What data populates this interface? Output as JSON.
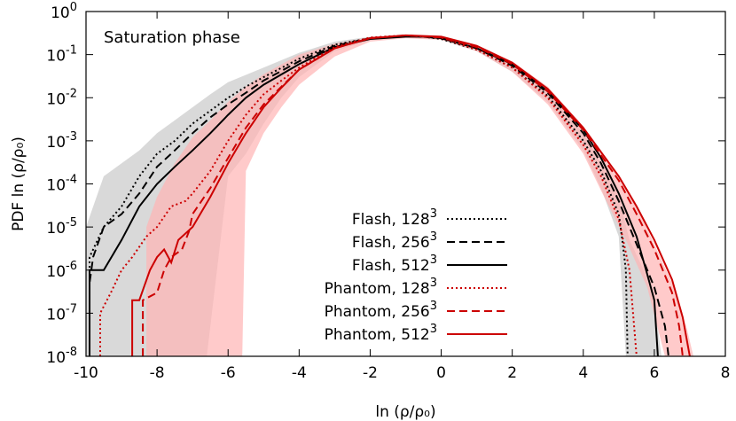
{
  "chart_data": {
    "type": "line",
    "annotation": "Saturation phase",
    "xlabel": "ln (ρ/ρ₀)",
    "ylabel": "PDF ln (ρ/ρ₀)",
    "xlim": [
      -10,
      8
    ],
    "ylim": [
      1e-08,
      1
    ],
    "yscale": "log",
    "grid": false,
    "legend_position": "lower-center",
    "x_ticks": [
      -10,
      -8,
      -6,
      -4,
      -2,
      0,
      2,
      4,
      6,
      8
    ],
    "y_ticks": [
      {
        "value": 1,
        "base": "10",
        "exp": "0"
      },
      {
        "value": 0.1,
        "base": "10",
        "exp": "-1"
      },
      {
        "value": 0.01,
        "base": "10",
        "exp": "-2"
      },
      {
        "value": 0.001,
        "base": "10",
        "exp": "-3"
      },
      {
        "value": 0.0001,
        "base": "10",
        "exp": "-4"
      },
      {
        "value": 1e-05,
        "base": "10",
        "exp": "-5"
      },
      {
        "value": 1e-06,
        "base": "10",
        "exp": "-6"
      },
      {
        "value": 1e-07,
        "base": "10",
        "exp": "-7"
      },
      {
        "value": 1e-08,
        "base": "10",
        "exp": "-8"
      }
    ],
    "bands": [
      {
        "color": "#cccccc",
        "opacity": 0.75,
        "upper": [
          [
            -10,
            1e-05
          ],
          [
            -9.5,
            0.00015
          ],
          [
            -9,
            0.0003
          ],
          [
            -8.5,
            0.0006
          ],
          [
            -8,
            0.0015
          ],
          [
            -7.5,
            0.003
          ],
          [
            -7,
            0.006
          ],
          [
            -6.5,
            0.012
          ],
          [
            -6,
            0.023
          ],
          [
            -5,
            0.05
          ],
          [
            -4,
            0.11
          ],
          [
            -3,
            0.2
          ],
          [
            -2,
            0.26
          ],
          [
            -1,
            0.28
          ],
          [
            0,
            0.25
          ],
          [
            1,
            0.15
          ],
          [
            2,
            0.06
          ],
          [
            3,
            0.015
          ],
          [
            4,
            0.0015
          ],
          [
            4.5,
            0.0003
          ],
          [
            5,
            5e-05
          ],
          [
            5.3,
            5e-06
          ],
          [
            5.7,
            1e-06
          ],
          [
            6,
            2e-07
          ],
          [
            6.2,
            1e-08
          ]
        ],
        "lower": [
          [
            5.2,
            1e-08
          ],
          [
            5,
            6e-06
          ],
          [
            4.5,
            8e-05
          ],
          [
            4,
            0.0006
          ],
          [
            3,
            0.008
          ],
          [
            2,
            0.04
          ],
          [
            1,
            0.12
          ],
          [
            0,
            0.22
          ],
          [
            -1,
            0.25
          ],
          [
            -2,
            0.22
          ],
          [
            -3,
            0.12
          ],
          [
            -4,
            0.03
          ],
          [
            -4.5,
            0.01
          ],
          [
            -5,
            0.0025
          ],
          [
            -5.5,
            0.0005
          ],
          [
            -6,
            0.00015
          ],
          [
            -6.6,
            1e-08
          ],
          [
            -10,
            1e-08
          ]
        ]
      },
      {
        "color": "#ffb3b3",
        "opacity": 0.7,
        "upper": [
          [
            -8.3,
            1e-08
          ],
          [
            -8.3,
            1e-05
          ],
          [
            -8,
            5e-05
          ],
          [
            -7.5,
            0.0003
          ],
          [
            -7,
            0.0012
          ],
          [
            -6.5,
            0.003
          ],
          [
            -6,
            0.008
          ],
          [
            -5.5,
            0.018
          ],
          [
            -5,
            0.035
          ],
          [
            -4,
            0.1
          ],
          [
            -3,
            0.18
          ],
          [
            -2,
            0.25
          ],
          [
            -1,
            0.28
          ],
          [
            0,
            0.25
          ],
          [
            1,
            0.16
          ],
          [
            2,
            0.07
          ],
          [
            3,
            0.018
          ],
          [
            4,
            0.0022
          ],
          [
            5,
            0.00015
          ],
          [
            5.5,
            3e-05
          ],
          [
            6,
            4e-06
          ],
          [
            6.5,
            5e-07
          ],
          [
            6.9,
            5e-08
          ],
          [
            7.1,
            1e-08
          ]
        ],
        "lower": [
          [
            6.3,
            1e-08
          ],
          [
            5.8,
            4e-07
          ],
          [
            5.2,
            5e-06
          ],
          [
            4.5,
            7e-05
          ],
          [
            4,
            0.0005
          ],
          [
            3,
            0.007
          ],
          [
            2,
            0.04
          ],
          [
            1,
            0.12
          ],
          [
            0,
            0.22
          ],
          [
            -1,
            0.24
          ],
          [
            -2,
            0.2
          ],
          [
            -3,
            0.09
          ],
          [
            -4,
            0.02
          ],
          [
            -4.5,
            0.006
          ],
          [
            -5,
            0.0015
          ],
          [
            -5.5,
            0.0002
          ],
          [
            -5.6,
            1e-08
          ]
        ]
      }
    ],
    "series": [
      {
        "name": "Flash, 128",
        "sup": "3",
        "color": "#000000",
        "dash": "2,3",
        "width": 2,
        "points": [
          [
            -9.9,
            1e-08
          ],
          [
            -9.9,
            2e-06
          ],
          [
            -9.5,
            1e-05
          ],
          [
            -9,
            3e-05
          ],
          [
            -8.5,
            0.00015
          ],
          [
            -8,
            0.0005
          ],
          [
            -7.5,
            0.001
          ],
          [
            -7,
            0.0025
          ],
          [
            -6.5,
            0.005
          ],
          [
            -6,
            0.01
          ],
          [
            -5.5,
            0.018
          ],
          [
            -5,
            0.03
          ],
          [
            -4,
            0.08
          ],
          [
            -3,
            0.17
          ],
          [
            -2,
            0.24
          ],
          [
            -1,
            0.27
          ],
          [
            -0.5,
            0.26
          ],
          [
            0,
            0.23
          ],
          [
            1,
            0.13
          ],
          [
            2,
            0.05
          ],
          [
            3,
            0.011
          ],
          [
            4,
            0.001
          ],
          [
            4.5,
            0.0002
          ],
          [
            5,
            2e-05
          ],
          [
            5.1,
            5e-06
          ],
          [
            5.2,
            1e-06
          ],
          [
            5.25,
            1e-08
          ]
        ]
      },
      {
        "name": "Flash, 256",
        "sup": "3",
        "color": "#000000",
        "dash": "9,5",
        "width": 2,
        "points": [
          [
            -9.9,
            1e-08
          ],
          [
            -9.9,
            5e-07
          ],
          [
            -9.8,
            2e-06
          ],
          [
            -9.5,
            1e-05
          ],
          [
            -9,
            2e-05
          ],
          [
            -8.5,
            6e-05
          ],
          [
            -8,
            0.00025
          ],
          [
            -7.5,
            0.0006
          ],
          [
            -7,
            0.0015
          ],
          [
            -6.5,
            0.0035
          ],
          [
            -6,
            0.007
          ],
          [
            -5.5,
            0.013
          ],
          [
            -5,
            0.025
          ],
          [
            -4,
            0.07
          ],
          [
            -3,
            0.16
          ],
          [
            -2,
            0.24
          ],
          [
            -1,
            0.27
          ],
          [
            -0.5,
            0.26
          ],
          [
            0,
            0.24
          ],
          [
            1,
            0.14
          ],
          [
            2,
            0.055
          ],
          [
            3,
            0.013
          ],
          [
            4,
            0.0015
          ],
          [
            4.5,
            0.0003
          ],
          [
            5,
            4e-05
          ],
          [
            5.5,
            4e-06
          ],
          [
            6,
            4e-07
          ],
          [
            6.3,
            5e-08
          ],
          [
            6.4,
            1e-08
          ]
        ]
      },
      {
        "name": "Flash, 512",
        "sup": "3",
        "color": "#000000",
        "dash": "",
        "width": 2,
        "points": [
          [
            -9.9,
            1e-08
          ],
          [
            -9.9,
            1e-06
          ],
          [
            -9.5,
            1e-06
          ],
          [
            -9,
            5e-06
          ],
          [
            -8.5,
            3e-05
          ],
          [
            -8,
            0.0001
          ],
          [
            -7.5,
            0.00025
          ],
          [
            -7,
            0.0006
          ],
          [
            -6.5,
            0.0015
          ],
          [
            -6,
            0.004
          ],
          [
            -5.5,
            0.01
          ],
          [
            -5,
            0.02
          ],
          [
            -4,
            0.06
          ],
          [
            -3,
            0.15
          ],
          [
            -2,
            0.23
          ],
          [
            -1,
            0.26
          ],
          [
            -0.5,
            0.26
          ],
          [
            0,
            0.24
          ],
          [
            1,
            0.14
          ],
          [
            2,
            0.06
          ],
          [
            3,
            0.014
          ],
          [
            4,
            0.0018
          ],
          [
            4.5,
            0.0004
          ],
          [
            5,
            6e-05
          ],
          [
            5.5,
            6e-06
          ],
          [
            5.8,
            8e-07
          ],
          [
            6,
            2e-07
          ],
          [
            6.1,
            1e-08
          ]
        ]
      },
      {
        "name": "Phantom, 128",
        "sup": "3",
        "color": "#cc0000",
        "dash": "2,3",
        "width": 2,
        "points": [
          [
            -9.6,
            1e-08
          ],
          [
            -9.6,
            1e-07
          ],
          [
            -9.3,
            3e-07
          ],
          [
            -9,
            1e-06
          ],
          [
            -8.7,
            2e-06
          ],
          [
            -8.3,
            6e-06
          ],
          [
            -8,
            1e-05
          ],
          [
            -7.6,
            3e-05
          ],
          [
            -7.2,
            4e-05
          ],
          [
            -7,
            6e-05
          ],
          [
            -6.5,
            0.0002
          ],
          [
            -6,
            0.001
          ],
          [
            -5.5,
            0.004
          ],
          [
            -5,
            0.012
          ],
          [
            -4.5,
            0.025
          ],
          [
            -4,
            0.05
          ],
          [
            -3,
            0.15
          ],
          [
            -2,
            0.25
          ],
          [
            -1,
            0.28
          ],
          [
            0,
            0.25
          ],
          [
            1,
            0.13
          ],
          [
            2,
            0.05
          ],
          [
            3,
            0.01
          ],
          [
            4,
            0.0008
          ],
          [
            4.5,
            0.00015
          ],
          [
            5,
            1.5e-05
          ],
          [
            5.3,
            1e-06
          ],
          [
            5.5,
            1e-08
          ]
        ]
      },
      {
        "name": "Phantom, 256",
        "sup": "3",
        "color": "#cc0000",
        "dash": "9,5",
        "width": 2,
        "points": [
          [
            -8.4,
            1e-08
          ],
          [
            -8.4,
            2e-07
          ],
          [
            -8,
            3e-07
          ],
          [
            -7.8,
            1e-06
          ],
          [
            -7.6,
            2e-06
          ],
          [
            -7.3,
            3e-06
          ],
          [
            -7.1,
            8e-06
          ],
          [
            -7,
            2e-05
          ],
          [
            -6.5,
            8e-05
          ],
          [
            -6,
            0.0004
          ],
          [
            -5.5,
            0.002
          ],
          [
            -5,
            0.007
          ],
          [
            -4.5,
            0.018
          ],
          [
            -4,
            0.045
          ],
          [
            -3,
            0.14
          ],
          [
            -2,
            0.24
          ],
          [
            -1,
            0.28
          ],
          [
            0,
            0.25
          ],
          [
            1,
            0.15
          ],
          [
            2,
            0.06
          ],
          [
            3,
            0.014
          ],
          [
            4,
            0.0018
          ],
          [
            5,
            0.00012
          ],
          [
            5.5,
            2e-05
          ],
          [
            6,
            3e-06
          ],
          [
            6.5,
            3e-07
          ],
          [
            6.7,
            5e-08
          ],
          [
            6.8,
            1e-08
          ]
        ]
      },
      {
        "name": "Phantom, 512",
        "sup": "3",
        "color": "#cc0000",
        "dash": "",
        "width": 2,
        "points": [
          [
            -8.7,
            1e-08
          ],
          [
            -8.7,
            2e-07
          ],
          [
            -8.5,
            2e-07
          ],
          [
            -8.2,
            1e-06
          ],
          [
            -8,
            2e-06
          ],
          [
            -7.8,
            3e-06
          ],
          [
            -7.6,
            1.5e-06
          ],
          [
            -7.4,
            5e-06
          ],
          [
            -7,
            1e-05
          ],
          [
            -6.5,
            5e-05
          ],
          [
            -6,
            0.0003
          ],
          [
            -5.5,
            0.0015
          ],
          [
            -5,
            0.006
          ],
          [
            -4.5,
            0.017
          ],
          [
            -4,
            0.045
          ],
          [
            -3,
            0.14
          ],
          [
            -2,
            0.24
          ],
          [
            -1,
            0.28
          ],
          [
            0,
            0.26
          ],
          [
            1,
            0.16
          ],
          [
            2,
            0.065
          ],
          [
            3,
            0.016
          ],
          [
            4,
            0.002
          ],
          [
            5,
            0.00015
          ],
          [
            5.5,
            3e-05
          ],
          [
            6,
            5e-06
          ],
          [
            6.5,
            6e-07
          ],
          [
            6.8,
            8e-08
          ],
          [
            7,
            1e-08
          ]
        ]
      }
    ]
  }
}
